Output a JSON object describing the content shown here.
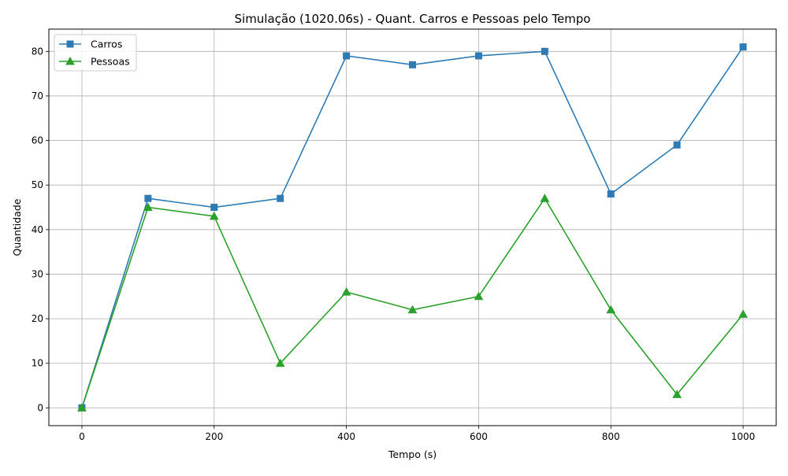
{
  "chart_data": {
    "type": "line",
    "title": "Simulação (1020.06s) - Quant. Carros e Pessoas pelo Tempo",
    "xlabel": "Tempo (s)",
    "ylabel": "Quantidade",
    "x": [
      0,
      100,
      200,
      300,
      400,
      500,
      600,
      700,
      800,
      900,
      1000
    ],
    "xlim": [
      -50,
      1050
    ],
    "ylim": [
      -4,
      85
    ],
    "xticks": [
      0,
      200,
      400,
      600,
      800,
      1000
    ],
    "yticks": [
      0,
      10,
      20,
      30,
      40,
      50,
      60,
      70,
      80
    ],
    "grid": true,
    "legend_position": "top-left",
    "series": [
      {
        "name": "Carros",
        "marker": "square",
        "color": "#2e7bb4",
        "values": [
          0,
          47,
          45,
          47,
          79,
          77,
          79,
          80,
          48,
          59,
          81
        ]
      },
      {
        "name": "Pessoas",
        "marker": "triangle",
        "color": "#2ca02c",
        "values": [
          0,
          45,
          43,
          10,
          26,
          22,
          25,
          47,
          22,
          3,
          21
        ]
      }
    ]
  }
}
